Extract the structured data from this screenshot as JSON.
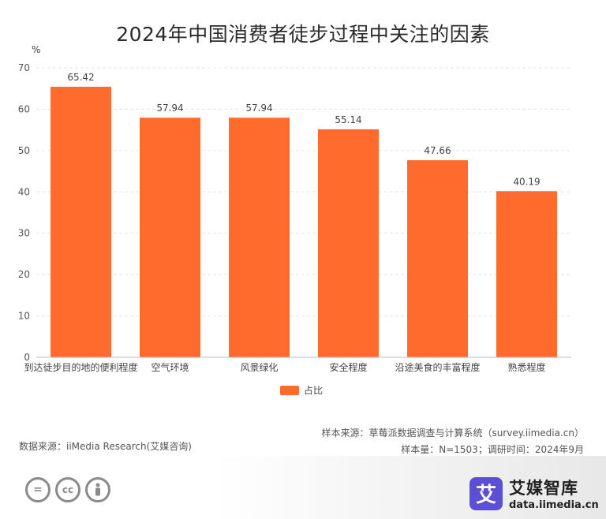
{
  "title": "2024年中国消费者徒步过程中关注的因素",
  "chart_data": {
    "type": "bar",
    "title": "2024年中国消费者徒步过程中关注的因素",
    "unit_label": "%",
    "categories": [
      "到达徒步目的地的便利程度",
      "空气环境",
      "风景绿化",
      "安全程度",
      "沿途美食的丰富程度",
      "熟悉程度"
    ],
    "series": [
      {
        "name": "占比",
        "values": [
          65.42,
          57.94,
          57.94,
          55.14,
          47.66,
          40.19
        ],
        "color": "#ff6b2c"
      }
    ],
    "data_labels": [
      "65.42",
      "57.94",
      "57.94",
      "55.14",
      "47.66",
      "40.19"
    ],
    "yticks": [
      "0",
      "10",
      "20",
      "30",
      "40",
      "50",
      "60",
      "70"
    ],
    "ylim": [
      0,
      70
    ],
    "grid": true,
    "legend_position": "bottom"
  },
  "sources": {
    "sample_source": "样本来源：草莓派数据调查与计算系统（survey.iimedia.cn）",
    "data_source": "数据来源：iiMedia Research(艾媒咨询)",
    "sample_info": "样本量：N=1503；调研时间：2024年9月"
  },
  "brand": {
    "logo_char": "艾",
    "name": "艾媒智库",
    "url": "data.iimedia.cn",
    "color": "#5b4fd6"
  },
  "license_icons": [
    "equals-icon",
    "cc-icon",
    "person-icon"
  ]
}
